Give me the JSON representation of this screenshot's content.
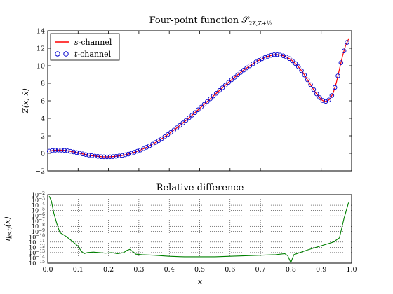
{
  "chart_data": [
    {
      "type": "line",
      "title": "Four-point function 𝒮",
      "title_subscript": "2Z,Z+½",
      "ylabel": "Z(x, x̄)",
      "xlim": [
        0.0,
        1.0
      ],
      "ylim": [
        -2,
        14
      ],
      "yticks": [
        "−2",
        "0",
        "2",
        "4",
        "6",
        "8",
        "10",
        "12",
        "14"
      ],
      "ytick_values": [
        -2,
        0,
        2,
        4,
        6,
        8,
        10,
        12,
        14
      ],
      "legend": {
        "placement": "top-left",
        "entries": [
          {
            "italic": "s",
            "text": "-channel",
            "color": "#ff0000",
            "marker": "line"
          },
          {
            "italic": "t",
            "text": "-channel",
            "color": "#0000cc",
            "marker": "circle"
          }
        ]
      },
      "curve_points": [
        [
          0.005,
          0.25
        ],
        [
          0.02,
          0.35
        ],
        [
          0.04,
          0.38
        ],
        [
          0.06,
          0.32
        ],
        [
          0.08,
          0.2
        ],
        [
          0.1,
          0.05
        ],
        [
          0.12,
          -0.1
        ],
        [
          0.14,
          -0.24
        ],
        [
          0.16,
          -0.33
        ],
        [
          0.18,
          -0.39
        ],
        [
          0.2,
          -0.4
        ],
        [
          0.22,
          -0.36
        ],
        [
          0.24,
          -0.27
        ],
        [
          0.26,
          -0.13
        ],
        [
          0.28,
          0.06
        ],
        [
          0.3,
          0.3
        ],
        [
          0.32,
          0.6
        ],
        [
          0.34,
          0.95
        ],
        [
          0.36,
          1.34
        ],
        [
          0.38,
          1.78
        ],
        [
          0.4,
          2.26
        ],
        [
          0.42,
          2.78
        ],
        [
          0.44,
          3.33
        ],
        [
          0.46,
          3.91
        ],
        [
          0.48,
          4.51
        ],
        [
          0.5,
          5.13
        ],
        [
          0.52,
          5.76
        ],
        [
          0.54,
          6.39
        ],
        [
          0.56,
          7.02
        ],
        [
          0.58,
          7.64
        ],
        [
          0.6,
          8.25
        ],
        [
          0.62,
          8.83
        ],
        [
          0.64,
          9.38
        ],
        [
          0.66,
          9.88
        ],
        [
          0.68,
          10.33
        ],
        [
          0.7,
          10.72
        ],
        [
          0.72,
          11.03
        ],
        [
          0.74,
          11.24
        ],
        [
          0.75,
          11.28
        ],
        [
          0.76,
          11.26
        ],
        [
          0.78,
          11.1
        ],
        [
          0.8,
          10.72
        ],
        [
          0.82,
          10.1
        ],
        [
          0.84,
          9.22
        ],
        [
          0.86,
          8.12
        ],
        [
          0.88,
          7.0
        ],
        [
          0.9,
          6.15
        ],
        [
          0.91,
          5.92
        ],
        [
          0.92,
          5.95
        ],
        [
          0.93,
          6.25
        ],
        [
          0.94,
          6.95
        ],
        [
          0.95,
          8.1
        ],
        [
          0.96,
          9.6
        ],
        [
          0.97,
          11.1
        ],
        [
          0.98,
          12.3
        ],
        [
          0.99,
          13.05
        ]
      ],
      "markers_x_step": 0.01
    },
    {
      "type": "line",
      "title": "Relative difference",
      "ylabel": "η",
      "ylabel_subscript": "(s,t)",
      "ylabel_arg": "(x)",
      "xlabel": "x",
      "xlim": [
        0.0,
        1.0
      ],
      "ylim_log10": [
        -15,
        -2
      ],
      "xticks": [
        "0.0",
        "0.1",
        "0.2",
        "0.3",
        "0.4",
        "0.5",
        "0.6",
        "0.7",
        "0.8",
        "0.9",
        "1.0"
      ],
      "xtick_values": [
        0.0,
        0.1,
        0.2,
        0.3,
        0.4,
        0.5,
        0.6,
        0.7,
        0.8,
        0.9,
        1.0
      ],
      "ytick_exponents": [
        -2,
        -3,
        -4,
        -5,
        -6,
        -7,
        -8,
        -9,
        -10,
        -11,
        -12,
        -13,
        -14,
        -15
      ],
      "ytick_base": "10",
      "grid": true,
      "series_color": "#008000",
      "log10_points": [
        [
          0.005,
          -2.3
        ],
        [
          0.012,
          -3.2
        ],
        [
          0.02,
          -5.5
        ],
        [
          0.03,
          -7.5
        ],
        [
          0.04,
          -9.2
        ],
        [
          0.06,
          -9.9
        ],
        [
          0.08,
          -10.8
        ],
        [
          0.1,
          -11.8
        ],
        [
          0.11,
          -12.7
        ],
        [
          0.12,
          -13.2
        ],
        [
          0.13,
          -13.0
        ],
        [
          0.15,
          -12.9
        ],
        [
          0.17,
          -13.0
        ],
        [
          0.19,
          -13.1
        ],
        [
          0.21,
          -13.0
        ],
        [
          0.23,
          -13.2
        ],
        [
          0.25,
          -13.0
        ],
        [
          0.26,
          -12.6
        ],
        [
          0.27,
          -12.4
        ],
        [
          0.28,
          -12.8
        ],
        [
          0.29,
          -13.3
        ],
        [
          0.31,
          -13.4
        ],
        [
          0.35,
          -13.5
        ],
        [
          0.4,
          -13.7
        ],
        [
          0.45,
          -13.8
        ],
        [
          0.5,
          -13.8
        ],
        [
          0.55,
          -13.8
        ],
        [
          0.6,
          -13.7
        ],
        [
          0.65,
          -13.6
        ],
        [
          0.7,
          -13.5
        ],
        [
          0.75,
          -13.4
        ],
        [
          0.78,
          -13.2
        ],
        [
          0.79,
          -13.6
        ],
        [
          0.8,
          -14.9
        ],
        [
          0.81,
          -13.4
        ],
        [
          0.85,
          -12.6
        ],
        [
          0.9,
          -11.7
        ],
        [
          0.94,
          -11.0
        ],
        [
          0.96,
          -10.2
        ],
        [
          0.975,
          -6.5
        ],
        [
          0.99,
          -3.5
        ]
      ]
    }
  ]
}
